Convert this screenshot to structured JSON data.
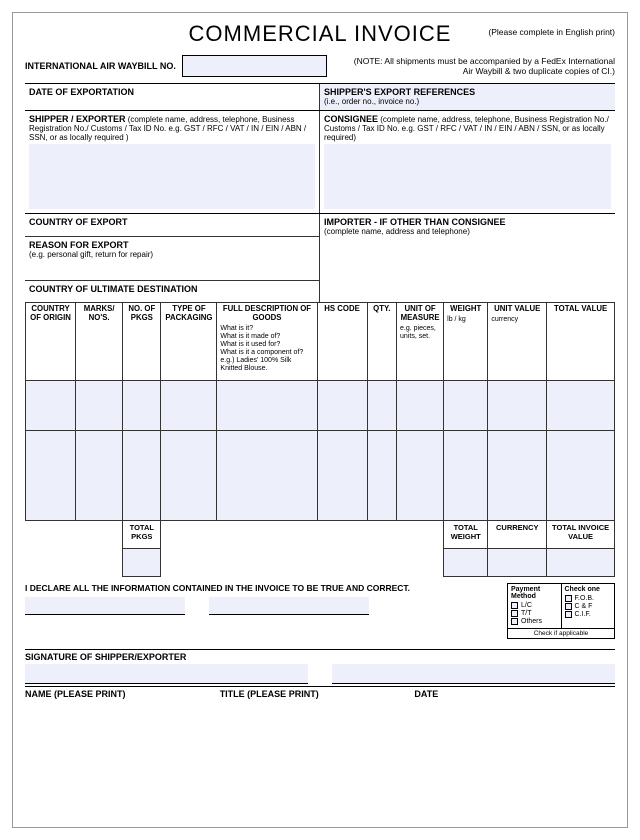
{
  "colors": {
    "fill": "#edf0fa",
    "border": "#000000",
    "text": "#000000"
  },
  "title": "COMMERCIAL INVOICE",
  "subtitle_right": "(Please complete in English print)",
  "waybill": {
    "label": "INTERNATIONAL AIR WAYBILL NO.",
    "note": "(NOTE: All shipments must be accompanied by a FedEx International Air Waybill & two duplicate copies of CI.)"
  },
  "sections": {
    "date_exportation": "DATE OF EXPORTATION",
    "shipper_export_ref": "SHIPPER'S EXPORT REFERENCES",
    "shipper_export_ref_hint": "(i.e., order no., invoice no.)",
    "shipper_exporter": "SHIPPER / EXPORTER",
    "shipper_exporter_hint": "(complete name, address, telephone, Business Registration No./ Customs / Tax ID No. e.g. GST / RFC / VAT / IN / EIN / ABN / SSN, or as locally required )",
    "consignee": "CONSIGNEE",
    "consignee_hint": "(complete name, address, telephone, Business Registration No./ Customs / Tax ID No. e.g. GST / RFC / VAT / IN / EIN / ABN / SSN, or as locally required)",
    "country_export": "COUNTRY OF EXPORT",
    "importer": "IMPORTER - IF OTHER THAN CONSIGNEE",
    "importer_hint": "(complete name, address and telephone)",
    "reason_export": "REASON FOR EXPORT",
    "reason_export_hint": "(e.g. personal gift, return for repair)",
    "country_ult_dest": "COUNTRY OF ULTIMATE DESTINATION"
  },
  "items_table": {
    "columns": [
      {
        "label": "COUNTRY OF ORIGIN",
        "sub": "",
        "width": "8.5%"
      },
      {
        "label": "MARKS/ NO'S.",
        "sub": "",
        "width": "8%"
      },
      {
        "label": "NO. OF PKGS",
        "sub": "",
        "width": "6.5%"
      },
      {
        "label": "TYPE OF PACKAGING",
        "sub": "",
        "width": "9.5%"
      },
      {
        "label": "FULL DESCRIPTION OF GOODS",
        "sub": "What is it?\nWhat is it made of?\nWhat is it used for?\nWhat is it a component of?\ne.g.) Ladies' 100% Silk Knitted Blouse.",
        "width": "17%"
      },
      {
        "label": "HS CODE",
        "sub": "",
        "width": "8.5%"
      },
      {
        "label": "QTY.",
        "sub": "",
        "width": "5%"
      },
      {
        "label": "UNIT OF MEASURE",
        "sub": "e.g. pieces, units, set.",
        "width": "8%"
      },
      {
        "label": "WEIGHT",
        "sub": "lb / kg",
        "width": "7.5%"
      },
      {
        "label": "UNIT VALUE",
        "sub": "currency",
        "width": "10%"
      },
      {
        "label": "TOTAL VALUE",
        "sub": "",
        "width": "11.5%"
      }
    ],
    "rows": 2
  },
  "totals": {
    "total_pkgs": "TOTAL PKGS",
    "total_weight": "TOTAL WEIGHT",
    "currency": "CURRENCY",
    "total_invoice_value": "TOTAL INVOICE VALUE"
  },
  "declaration": "I DECLARE ALL THE INFORMATION CONTAINED IN THE INVOICE TO BE TRUE AND CORRECT.",
  "payment": {
    "header_left": "Payment Method",
    "header_right": "Check one",
    "left_options": [
      "L/C",
      "T/T",
      "Others"
    ],
    "right_options": [
      "F.O.B.",
      "C & F",
      "C.I.F."
    ],
    "footer": "Check if applicable"
  },
  "signature": {
    "label": "SIGNATURE OF SHIPPER/EXPORTER",
    "name": "NAME (PLEASE PRINT)",
    "title": "TITLE (PLEASE PRINT)",
    "date": "DATE"
  }
}
